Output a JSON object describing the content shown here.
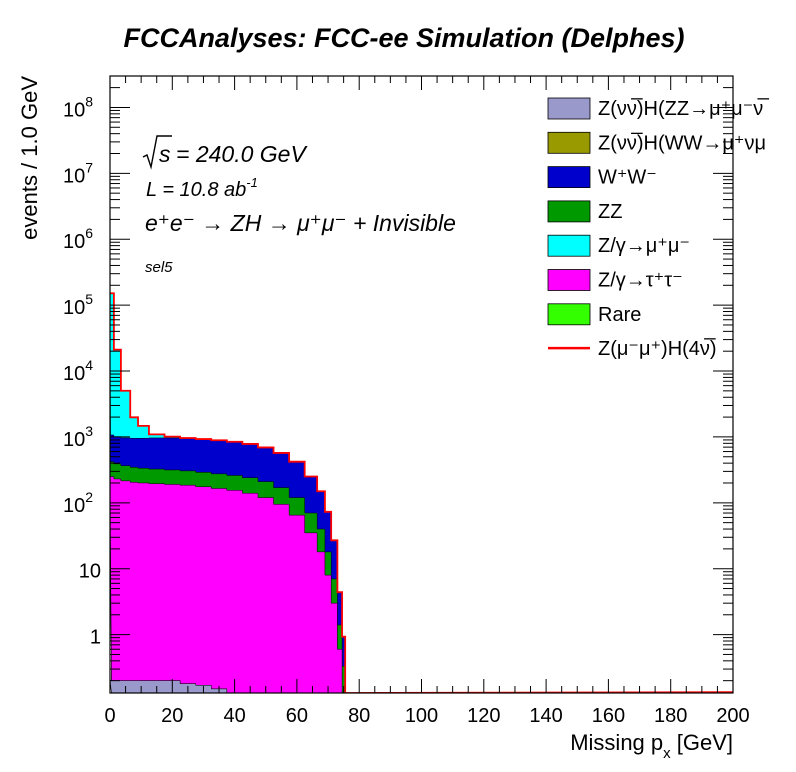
{
  "chart_data": {
    "type": "area",
    "stacked": true,
    "title": "FCCAnalyses: FCC-ee Simulation (Delphes)",
    "xlabel": {
      "main": "Missing p",
      "sub": "x",
      "unit": " [GeV]"
    },
    "ylabel": "events / 1.0 GeV",
    "xlim": [
      0,
      200
    ],
    "ylim": [
      0.13,
      300000000
    ],
    "log_y": true,
    "grid": false,
    "legend_position": "top-right",
    "x_ticks": [
      0,
      20,
      40,
      60,
      80,
      100,
      120,
      140,
      160,
      180,
      200
    ],
    "y_ticks": [
      {
        "value": 1,
        "base": "1",
        "exp": ""
      },
      {
        "value": 10,
        "base": "10",
        "exp": ""
      },
      {
        "value": 100,
        "base": "10",
        "exp": "2"
      },
      {
        "value": 1000,
        "base": "10",
        "exp": "3"
      },
      {
        "value": 10000,
        "base": "10",
        "exp": "4"
      },
      {
        "value": 100000,
        "base": "10",
        "exp": "5"
      },
      {
        "value": 1000000,
        "base": "10",
        "exp": "6"
      },
      {
        "value": 10000000,
        "base": "10",
        "exp": "7"
      },
      {
        "value": 100000000,
        "base": "10",
        "exp": "8"
      }
    ],
    "annotations": {
      "sqrt_s": "= 240.0 GeV",
      "sqrt_symbol": "s",
      "lumi": "L = 10.8 ab",
      "lumi_exp": "-1",
      "process": "e⁺e⁻ → ZH → μ⁺μ⁻ + Invisible",
      "selection": "sel5"
    },
    "x": [
      0.5,
      2,
      5,
      8,
      10,
      15,
      20,
      25,
      30,
      35,
      40,
      45,
      50,
      55,
      60,
      65,
      68,
      70,
      72,
      74,
      75,
      76
    ],
    "series": [
      {
        "name": "Z(νν̅)H(ZZ→μ⁺μ⁻νν̅)",
        "color": "#9999cc",
        "values": [
          0.2,
          0.2,
          0.2,
          0.2,
          0.2,
          0.2,
          0.2,
          0.18,
          0.17,
          0.15,
          0.12,
          0,
          0,
          0,
          0,
          0,
          0,
          0,
          0,
          0,
          0,
          0
        ]
      },
      {
        "name": "Z(νν̅)H(WW→μ⁺νμ⁻ν̅)",
        "color": "#999900",
        "values": [
          0,
          0,
          0,
          0,
          0,
          0,
          0,
          0,
          0,
          0,
          0,
          0,
          0,
          0,
          0,
          0,
          0,
          0,
          0,
          0,
          0,
          0
        ]
      },
      {
        "name": "Z/γ→τ⁺τ⁻",
        "color": "#ff00ff",
        "values": [
          250,
          230,
          215,
          205,
          200,
          195,
          190,
          185,
          175,
          165,
          155,
          140,
          120,
          95,
          65,
          35,
          18,
          8,
          3,
          0.6,
          0.13,
          0
        ]
      },
      {
        "name": "ZZ",
        "color": "#009900",
        "values": [
          170,
          160,
          150,
          140,
          135,
          130,
          125,
          120,
          115,
          110,
          105,
          100,
          90,
          75,
          55,
          35,
          22,
          10,
          4,
          0.8,
          0.2,
          0
        ]
      },
      {
        "name": "W⁺W⁻",
        "color": "#0000cc",
        "values": [
          650,
          620,
          600,
          610,
          620,
          640,
          650,
          640,
          630,
          610,
          580,
          540,
          480,
          400,
          300,
          180,
          110,
          55,
          20,
          3,
          0.6,
          0
        ]
      },
      {
        "name": "Z/γ→μ⁺μ⁻",
        "color": "#00ffff",
        "values": [
          150000,
          20000,
          4000,
          1000,
          500,
          120,
          40,
          15,
          5,
          3,
          2,
          1,
          0,
          0,
          0,
          0,
          0,
          0,
          0,
          0,
          0,
          0
        ]
      },
      {
        "name": "Rare",
        "color": "#33ff00",
        "values": [
          200,
          120,
          60,
          30,
          15,
          8,
          5,
          4,
          3,
          3,
          3,
          2,
          2,
          1,
          1,
          1,
          0,
          0,
          0,
          0,
          0,
          0
        ]
      }
    ],
    "signal": {
      "name": "Z(μ⁻μ⁺)H(4ν)",
      "color": "#ff0000",
      "values": [
        0,
        0,
        0,
        0,
        0,
        0,
        0,
        0,
        0,
        0,
        0,
        0,
        0,
        0,
        0,
        0,
        0,
        0,
        0,
        0,
        0,
        0
      ]
    },
    "legend": [
      {
        "text": "Z(νν̅)H(ZZ→μ⁺μ⁻ν̅",
        "color": "#9999cc",
        "kind": "box"
      },
      {
        "text": "Z(νν̅)H(WW→μ⁺νμ",
        "color": "#999900",
        "kind": "box"
      },
      {
        "text": "W⁺W⁻",
        "color": "#0000cc",
        "kind": "box"
      },
      {
        "text": "ZZ",
        "color": "#009900",
        "kind": "box"
      },
      {
        "text": "Z/γ→μ⁺μ⁻",
        "color": "#00ffff",
        "kind": "box"
      },
      {
        "text": "Z/γ→τ⁺τ⁻",
        "color": "#ff00ff",
        "kind": "box"
      },
      {
        "text": "Rare",
        "color": "#33ff00",
        "kind": "box"
      },
      {
        "text": "Z(μ⁻μ⁺)H(4ν̅)",
        "color": "#ff0000",
        "kind": "line"
      }
    ]
  }
}
